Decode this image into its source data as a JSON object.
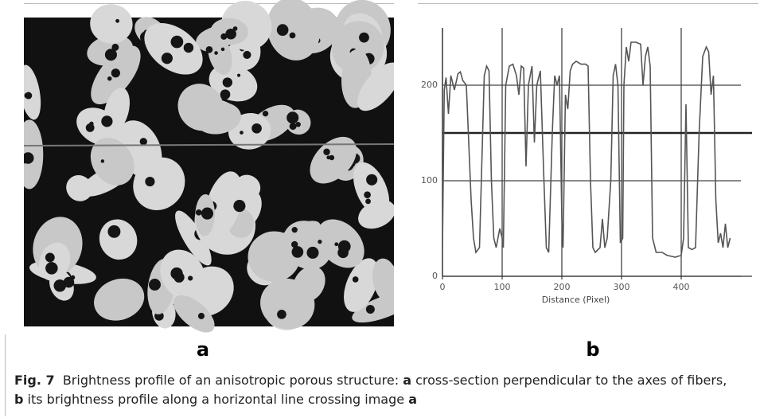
{
  "figure": {
    "panel_a": {
      "label": "a"
    },
    "panel_b": {
      "label": "b"
    },
    "chart_data": {
      "type": "line",
      "x_label": "Distance (Pixel)",
      "xlim": [
        0,
        500
      ],
      "xticks": [
        0,
        100,
        200,
        300,
        400
      ],
      "ylim": [
        0,
        260
      ],
      "yticks": [
        0,
        100,
        200
      ],
      "grid": true,
      "hline": 150,
      "series": [
        {
          "color": "#555555",
          "x": [
            0,
            3,
            6,
            10,
            14,
            20,
            26,
            30,
            34,
            40,
            48,
            52,
            56,
            62,
            66,
            70,
            74,
            78,
            82,
            86,
            90,
            96,
            100,
            102,
            106,
            112,
            118,
            124,
            128,
            132,
            136,
            140,
            144,
            150,
            154,
            158,
            164,
            170,
            174,
            178,
            184,
            188,
            192,
            196,
            200,
            202,
            206,
            210,
            214,
            218,
            224,
            232,
            240,
            244,
            248,
            252,
            256,
            264,
            268,
            272,
            276,
            282,
            286,
            290,
            294,
            298,
            302,
            304,
            308,
            312,
            316,
            324,
            332,
            336,
            340,
            344,
            348,
            352,
            358,
            368,
            376,
            390,
            400,
            404,
            408,
            412,
            418,
            424,
            430,
            436,
            442,
            446,
            450,
            454,
            458,
            462,
            466,
            470,
            474,
            478,
            482
          ],
          "values": [
            30,
            195,
            208,
            170,
            210,
            195,
            212,
            214,
            205,
            200,
            80,
            40,
            25,
            30,
            120,
            210,
            220,
            215,
            100,
            40,
            30,
            50,
            40,
            30,
            200,
            220,
            222,
            210,
            190,
            220,
            218,
            115,
            200,
            220,
            140,
            200,
            215,
            100,
            30,
            25,
            150,
            210,
            200,
            210,
            60,
            30,
            190,
            175,
            215,
            222,
            225,
            222,
            222,
            220,
            100,
            30,
            25,
            30,
            60,
            30,
            40,
            100,
            210,
            222,
            200,
            35,
            40,
            200,
            240,
            225,
            245,
            245,
            243,
            200,
            230,
            240,
            220,
            40,
            25,
            25,
            22,
            20,
            22,
            40,
            180,
            30,
            28,
            30,
            150,
            230,
            240,
            235,
            190,
            210,
            80,
            35,
            45,
            30,
            55,
            30,
            40
          ]
        }
      ]
    },
    "caption": {
      "label": "Fig. 7",
      "parts": [
        {
          "text": "Brightness profile of an anisotropic porous structure: ",
          "bold": false
        },
        {
          "text": "a",
          "bold": true
        },
        {
          "text": " cross-section perpendicular to the axes of fibers, ",
          "bold": false
        },
        {
          "text": "b",
          "bold": true
        },
        {
          "text": " its brightness profile along a horizontal line crossing image ",
          "bold": false
        },
        {
          "text": "a",
          "bold": true
        }
      ]
    }
  }
}
